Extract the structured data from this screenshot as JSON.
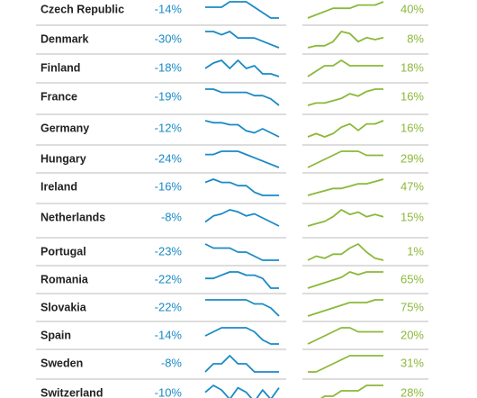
{
  "rows": [
    {
      "country": "Czech Republic",
      "change": "-14%",
      "trend_blue": [
        7,
        7,
        7,
        8,
        8,
        8,
        7,
        6,
        5,
        5
      ],
      "trend_green": [
        3,
        4,
        5,
        6,
        6,
        6,
        7,
        7,
        7,
        8
      ],
      "share": "40%"
    },
    {
      "country": "Denmark",
      "change": "-30%",
      "trend_blue": [
        8,
        8,
        7,
        8,
        6,
        6,
        6,
        5,
        4,
        3
      ],
      "trend_green": [
        1,
        2,
        2,
        4,
        9,
        8,
        4,
        6,
        5,
        6
      ],
      "share": "8%"
    },
    {
      "country": "Finland",
      "change": "-18%",
      "trend_blue": [
        5,
        7,
        8,
        5,
        8,
        5,
        6,
        3,
        3,
        2
      ],
      "trend_green": [
        4,
        5,
        6,
        6,
        7,
        6,
        6,
        6,
        6,
        6
      ],
      "share": "18%"
    },
    {
      "country": "France",
      "change": "-19%",
      "trend_blue": [
        8,
        8,
        7,
        7,
        7,
        7,
        6,
        6,
        5,
        3
      ],
      "trend_green": [
        1,
        2,
        2,
        3,
        4,
        6,
        5,
        7,
        8,
        8
      ],
      "share": "16%"
    },
    {
      "country": "Germany",
      "change": "-12%",
      "trend_blue": [
        9,
        8,
        8,
        7,
        7,
        4,
        3,
        5,
        3,
        1
      ],
      "trend_green": [
        3,
        4,
        3,
        4,
        6,
        7,
        5,
        7,
        7,
        8
      ],
      "share": "16%"
    },
    {
      "country": "Hungary",
      "change": "-24%",
      "trend_blue": [
        7,
        7,
        8,
        8,
        8,
        7,
        6,
        5,
        4,
        3
      ],
      "trend_green": [
        3,
        4,
        5,
        6,
        7,
        7,
        7,
        6,
        6,
        6
      ],
      "share": "29%"
    },
    {
      "country": "Ireland",
      "change": "-16%",
      "trend_blue": [
        7,
        8,
        7,
        7,
        6,
        6,
        4,
        3,
        3,
        3
      ],
      "trend_green": [
        2,
        3,
        4,
        5,
        5,
        6,
        7,
        7,
        8,
        9
      ],
      "share": "47%"
    },
    {
      "country": "Netherlands",
      "change": "-8%",
      "trend_blue": [
        3,
        6,
        7,
        9,
        8,
        6,
        7,
        5,
        3,
        1
      ],
      "trend_green": [
        2,
        3,
        4,
        6,
        9,
        7,
        8,
        6,
        7,
        6
      ],
      "share": "15%"
    },
    {
      "country": "Portugal",
      "change": "-23%",
      "trend_blue": [
        8,
        7,
        7,
        7,
        6,
        6,
        5,
        4,
        4,
        4
      ],
      "trend_green": [
        1,
        3,
        2,
        4,
        4,
        7,
        9,
        5,
        2,
        1
      ],
      "share": "1%"
    },
    {
      "country": "Romania",
      "change": "-22%",
      "trend_blue": [
        6,
        6,
        7,
        8,
        8,
        7,
        7,
        6,
        3,
        3
      ],
      "trend_green": [
        2,
        3,
        4,
        5,
        6,
        8,
        7,
        8,
        8,
        8
      ],
      "share": "65%"
    },
    {
      "country": "Slovakia",
      "change": "-22%",
      "trend_blue": [
        7,
        7,
        7,
        7,
        7,
        7,
        6,
        6,
        5,
        3
      ],
      "trend_green": [
        2,
        3,
        4,
        5,
        6,
        7,
        7,
        7,
        8,
        8
      ],
      "share": "75%"
    },
    {
      "country": "Spain",
      "change": "-14%",
      "trend_blue": [
        5,
        6,
        7,
        7,
        7,
        7,
        6,
        4,
        3,
        3
      ],
      "trend_green": [
        3,
        4,
        5,
        6,
        7,
        7,
        6,
        6,
        6,
        6
      ],
      "share": "20%"
    },
    {
      "country": "Sweden",
      "change": "-8%",
      "trend_blue": [
        4,
        5,
        5,
        6,
        5,
        5,
        4,
        4,
        4,
        4
      ],
      "trend_green": [
        3,
        3,
        4,
        5,
        6,
        7,
        7,
        7,
        7,
        7
      ],
      "share": "31%"
    },
    {
      "country": "Switzerland",
      "change": "-10%",
      "trend_blue": [
        6,
        9,
        7,
        3,
        8,
        6,
        2,
        7,
        3,
        8
      ],
      "trend_green": [
        3,
        3,
        4,
        4,
        5,
        5,
        5,
        6,
        6,
        6
      ],
      "share": "28%"
    }
  ]
}
